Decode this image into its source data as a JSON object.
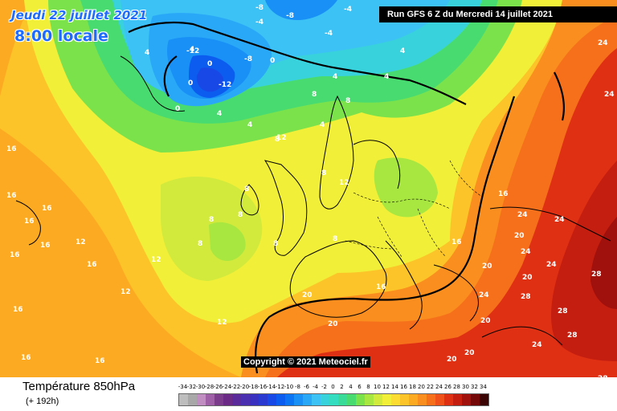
{
  "header": {
    "date": "Jeudi 22 juillet 2021",
    "time": "8:00 locale",
    "run": "Run GFS 6 Z du Mercredi 14 juillet 2021"
  },
  "copyright": "Copyright © 2021 Meteociel.fr",
  "footer": {
    "title": "Température 850hPa",
    "subtitle": "(+ 192h)"
  },
  "colorbar": {
    "labels": [
      "-34",
      "-32",
      "-30",
      "-28",
      "-26",
      "-24",
      "-22",
      "-20",
      "-18",
      "-16",
      "-14",
      "-12",
      "-10",
      "-8",
      "-6",
      "-4",
      "-2",
      "0",
      "2",
      "4",
      "6",
      "8",
      "10",
      "12",
      "14",
      "16",
      "18",
      "20",
      "22",
      "24",
      "26",
      "28",
      "30",
      "32",
      "34"
    ],
    "colors": [
      "#bdbdbd",
      "#a8a8a8",
      "#c08ec0",
      "#a060a8",
      "#7c3c8c",
      "#6a2a86",
      "#5a2a9a",
      "#4a2fb0",
      "#3a30c0",
      "#2a3ad0",
      "#1848e6",
      "#0c5cf0",
      "#0a74f2",
      "#1890f6",
      "#2aa8f8",
      "#3cc2f4",
      "#38d2dc",
      "#34dcc0",
      "#38dc98",
      "#48dc70",
      "#7ce24c",
      "#a8e640",
      "#d2ea3c",
      "#f2ef38",
      "#fcdc30",
      "#fcc428",
      "#fcaa22",
      "#fa8e1e",
      "#f6701c",
      "#f0501a",
      "#e03014",
      "#c41e10",
      "#a0100c",
      "#740808",
      "#3a0404"
    ]
  },
  "map": {
    "labels": [
      {
        "text": "-8"
      },
      {
        "text": "-8"
      },
      {
        "text": "-4"
      },
      {
        "text": "-4"
      },
      {
        "text": "-4"
      },
      {
        "text": "-12"
      },
      {
        "text": "-12"
      },
      {
        "text": "-8"
      },
      {
        "text": "0"
      },
      {
        "text": "0"
      },
      {
        "text": "0"
      },
      {
        "text": "0"
      },
      {
        "text": "4"
      },
      {
        "text": "4"
      },
      {
        "text": "4"
      },
      {
        "text": "4"
      },
      {
        "text": "4"
      },
      {
        "text": "4"
      },
      {
        "text": "4"
      },
      {
        "text": "4"
      },
      {
        "text": "8"
      },
      {
        "text": "8"
      },
      {
        "text": "8"
      },
      {
        "text": "8"
      },
      {
        "text": "8"
      },
      {
        "text": "8"
      },
      {
        "text": "8"
      },
      {
        "text": "8"
      },
      {
        "text": "8"
      },
      {
        "text": "8"
      },
      {
        "text": "12"
      },
      {
        "text": "12"
      },
      {
        "text": "12"
      },
      {
        "text": "12"
      },
      {
        "text": "12"
      },
      {
        "text": "12"
      },
      {
        "text": "16"
      },
      {
        "text": "16"
      },
      {
        "text": "16"
      },
      {
        "text": "16"
      },
      {
        "text": "16"
      },
      {
        "text": "16"
      },
      {
        "text": "16"
      },
      {
        "text": "16"
      },
      {
        "text": "16"
      },
      {
        "text": "16"
      },
      {
        "text": "16"
      },
      {
        "text": "20"
      },
      {
        "text": "20"
      },
      {
        "text": "20"
      },
      {
        "text": "20"
      },
      {
        "text": "20"
      },
      {
        "text": "20"
      },
      {
        "text": "20"
      },
      {
        "text": "24"
      },
      {
        "text": "24"
      },
      {
        "text": "24"
      },
      {
        "text": "24"
      },
      {
        "text": "24"
      },
      {
        "text": "24"
      },
      {
        "text": "24"
      },
      {
        "text": "28"
      },
      {
        "text": "28"
      },
      {
        "text": "28"
      },
      {
        "text": "28"
      },
      {
        "text": "28"
      },
      {
        "text": "24"
      },
      {
        "text": "20"
      },
      {
        "text": "16"
      },
      {
        "text": "16"
      }
    ]
  }
}
